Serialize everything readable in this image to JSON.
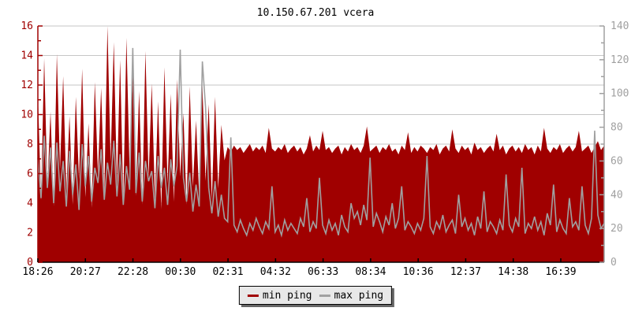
{
  "window": {
    "title": "10.150.67.201 vcera"
  },
  "legend": {
    "items": [
      {
        "label": "min ping",
        "color": "#a00000"
      },
      {
        "label": "max ping",
        "color": "#a0a0a0"
      }
    ]
  },
  "chart_data": {
    "type": "area",
    "title": "10.150.67.201 vcera",
    "grid": "horizontal",
    "legend_position": "bottom-center",
    "x_tick_labels": [
      "18:26",
      "20:27",
      "22:28",
      "00:30",
      "02:31",
      "04:32",
      "06:33",
      "08:34",
      "10:36",
      "12:37",
      "14:38",
      "16:39"
    ],
    "y_left": {
      "min": 0,
      "max": 16,
      "ticks": [
        16,
        14,
        12,
        10,
        8,
        6,
        4,
        2,
        0
      ],
      "minor_step": 1,
      "color": "#a00000"
    },
    "y_right": {
      "min": 0,
      "max": 140,
      "ticks": [
        140,
        120,
        100,
        80,
        60,
        40,
        20,
        0
      ],
      "minor_step": 10,
      "color": "#a0a0a0"
    },
    "colors": {
      "grid": "#c6c6c6",
      "x_axis": "#000000",
      "background": "#ffffff"
    },
    "series": [
      {
        "name": "min ping",
        "type": "area",
        "axis": "left",
        "color": "#a00000",
        "values": [
          11.5,
          4.2,
          13.8,
          5.1,
          10.2,
          3.8,
          14.1,
          6.3,
          12.6,
          4.8,
          9.9,
          3.9,
          11.2,
          5.6,
          13.1,
          4.4,
          9.4,
          3.7,
          12.2,
          5.9,
          11.8,
          4.6,
          16.0,
          6.8,
          14.9,
          5.2,
          13.7,
          4.1,
          15.2,
          6.1,
          12.8,
          4.5,
          11.6,
          3.9,
          14.3,
          5.7,
          12.1,
          4.3,
          10.9,
          3.6,
          13.2,
          5.3,
          11.4,
          4.1,
          12.4,
          5.8,
          10.1,
          3.9,
          11.9,
          5.1,
          9.6,
          4.4,
          12.0,
          5.5,
          10.7,
          4.2,
          11.2,
          5.0,
          9.3,
          6.9,
          7.8,
          7.5,
          7.9,
          7.6,
          7.8,
          7.4,
          7.7,
          8.0,
          7.5,
          7.8,
          7.6,
          7.9,
          7.4,
          9.1,
          7.7,
          7.5,
          7.8,
          7.6,
          8.0,
          7.4,
          7.7,
          7.9,
          7.5,
          7.8,
          7.3,
          7.7,
          8.6,
          7.5,
          7.9,
          7.6,
          8.9,
          7.6,
          7.8,
          7.4,
          7.7,
          7.9,
          7.3,
          7.8,
          7.5,
          8.0,
          7.6,
          7.8,
          7.4,
          7.9,
          9.2,
          7.5,
          7.7,
          7.9,
          7.4,
          7.8,
          7.6,
          8.0,
          7.5,
          7.7,
          7.3,
          7.9,
          7.6,
          8.8,
          7.4,
          7.8,
          7.5,
          7.9,
          7.7,
          7.4,
          7.8,
          7.6,
          8.0,
          7.3,
          7.7,
          7.9,
          7.5,
          9.0,
          7.7,
          7.4,
          7.9,
          7.6,
          7.8,
          7.3,
          8.1,
          7.6,
          7.8,
          7.4,
          7.7,
          7.9,
          7.5,
          8.7,
          7.6,
          7.9,
          7.3,
          7.7,
          7.9,
          7.5,
          7.8,
          7.4,
          8.0,
          7.6,
          7.8,
          7.3,
          7.9,
          7.5,
          9.1,
          7.7,
          7.4,
          7.8,
          7.6,
          8.0,
          7.4,
          7.7,
          7.9,
          7.5,
          7.8,
          8.9,
          7.5,
          7.7,
          7.9,
          7.4,
          7.8,
          8.2,
          7.6,
          7.9
        ]
      },
      {
        "name": "max ping",
        "type": "line",
        "axis": "right",
        "color": "#a0a0a0",
        "values": [
          62,
          38,
          75,
          44,
          68,
          35,
          71,
          42,
          60,
          33,
          66,
          40,
          58,
          31,
          70,
          45,
          63,
          36,
          56,
          47,
          67,
          37,
          59,
          46,
          72,
          39,
          64,
          34,
          57,
          43,
          127,
          41,
          65,
          36,
          60,
          48,
          54,
          32,
          63,
          44,
          56,
          34,
          61,
          45,
          57,
          126,
          50,
          36,
          53,
          30,
          46,
          33,
          119,
          92,
          44,
          29,
          48,
          27,
          40,
          26,
          24,
          74,
          22,
          18,
          25,
          20,
          16,
          23,
          19,
          26,
          21,
          17,
          24,
          20,
          45,
          18,
          22,
          16,
          25,
          19,
          23,
          20,
          17,
          26,
          21,
          38,
          18,
          24,
          20,
          50,
          22,
          17,
          25,
          19,
          23,
          16,
          28,
          21,
          18,
          35,
          26,
          30,
          22,
          34,
          25,
          62,
          21,
          29,
          24,
          18,
          27,
          22,
          35,
          20,
          26,
          45,
          19,
          24,
          21,
          17,
          23,
          19,
          26,
          63,
          21,
          17,
          24,
          20,
          28,
          18,
          22,
          25,
          17,
          40,
          21,
          26,
          19,
          23,
          16,
          27,
          20,
          42,
          18,
          24,
          21,
          17,
          25,
          19,
          52,
          22,
          18,
          26,
          21,
          56,
          17,
          23,
          20,
          27,
          19,
          24,
          16,
          29,
          22,
          46,
          18,
          25,
          20,
          17,
          38,
          21,
          24,
          19,
          45,
          22,
          17,
          26,
          78,
          28,
          20,
          23
        ]
      }
    ]
  }
}
